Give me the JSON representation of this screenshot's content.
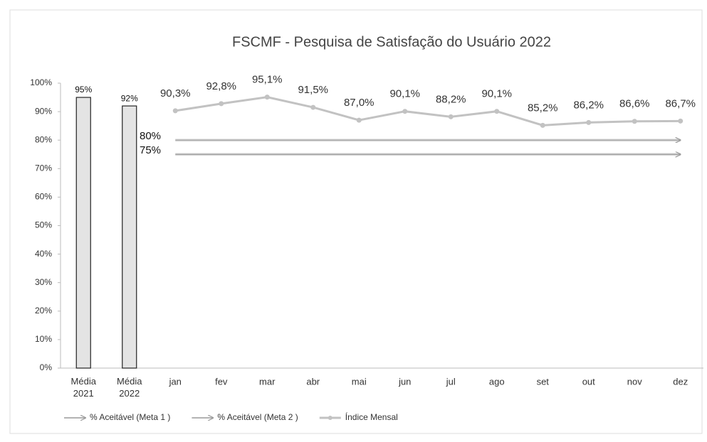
{
  "chart_data": {
    "type": "bar",
    "title": "FSCMF - Pesquisa de Satisfação do Usuário 2022",
    "categories": [
      "Média 2021",
      "Média 2022",
      "jan",
      "fev",
      "mar",
      "abr",
      "mai",
      "jun",
      "jul",
      "ago",
      "set",
      "out",
      "nov",
      "dez"
    ],
    "ylim": [
      0,
      100
    ],
    "yticks": [
      {
        "value": 0,
        "label": "0%"
      },
      {
        "value": 10,
        "label": "10%"
      },
      {
        "value": 20,
        "label": "20%"
      },
      {
        "value": 30,
        "label": "30%"
      },
      {
        "value": 40,
        "label": "40%"
      },
      {
        "value": 50,
        "label": "50%"
      },
      {
        "value": 60,
        "label": "60%"
      },
      {
        "value": 70,
        "label": "70%"
      },
      {
        "value": 80,
        "label": "80%"
      },
      {
        "value": 90,
        "label": "90%"
      },
      {
        "value": 100,
        "label": "100%"
      }
    ],
    "series": [
      {
        "type": "bar",
        "color": "#e4e4e4",
        "values": [
          95,
          92,
          null,
          null,
          null,
          null,
          null,
          null,
          null,
          null,
          null,
          null,
          null,
          null
        ],
        "value_labels": [
          "95%",
          "92%",
          null,
          null,
          null,
          null,
          null,
          null,
          null,
          null,
          null,
          null,
          null,
          null
        ]
      },
      {
        "type": "arrow",
        "name": "% Aceitável (Meta 1 )",
        "color": "#9a9a9a",
        "values": [
          null,
          null,
          80,
          80,
          80,
          80,
          80,
          80,
          80,
          80,
          80,
          80,
          80,
          80
        ]
      },
      {
        "type": "arrow",
        "name": "% Aceitável (Meta 2 )",
        "color": "#9a9a9a",
        "values": [
          null,
          null,
          75,
          75,
          75,
          75,
          75,
          75,
          75,
          75,
          75,
          75,
          75,
          75
        ]
      },
      {
        "type": "line",
        "name": "Índice Mensal",
        "color": "#c2c2c2",
        "values": [
          null,
          null,
          90.3,
          92.8,
          95.1,
          91.5,
          87.0,
          90.1,
          88.2,
          90.1,
          85.2,
          86.2,
          86.6,
          86.7
        ],
        "value_labels": [
          null,
          null,
          "90,3%",
          "92,8%",
          "95,1%",
          "91,5%",
          "87,0%",
          "90,1%",
          "88,2%",
          "90,1%",
          "85,2%",
          "86,2%",
          "86,6%",
          "86,7%"
        ]
      }
    ],
    "annotations": [
      {
        "text": "80%",
        "y": 80
      },
      {
        "text": "75%",
        "y": 75
      }
    ],
    "legend": "bottom"
  }
}
